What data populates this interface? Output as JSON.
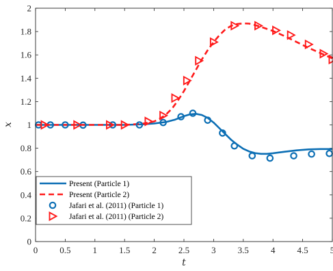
{
  "chart_data": {
    "type": "line",
    "xlabel": "t",
    "ylabel": "x",
    "xlim": [
      0,
      5
    ],
    "ylim": [
      0,
      2
    ],
    "xticks": [
      0,
      0.5,
      1,
      1.5,
      2,
      2.5,
      3,
      3.5,
      4,
      4.5,
      5
    ],
    "xtick_labels": [
      "0",
      "0.5",
      "1",
      "1.5",
      "2",
      "2.5",
      "3",
      "3.5",
      "4",
      "4.5",
      "5"
    ],
    "yticks": [
      0,
      0.2,
      0.4,
      0.6,
      0.8,
      1,
      1.2,
      1.4,
      1.6,
      1.8,
      2
    ],
    "ytick_labels": [
      "0",
      "0.2",
      "0.4",
      "0.6",
      "0.8",
      "1",
      "1.2",
      "1.4",
      "1.6",
      "1.8",
      "2"
    ],
    "grid": false,
    "legend_position": "lower-left",
    "series": [
      {
        "name": "Present (Particle 1)",
        "style": "solid-line",
        "color": "#0b6eb4",
        "x": [
          0,
          0.5,
          1.0,
          1.5,
          1.8,
          2.0,
          2.2,
          2.35,
          2.5,
          2.6,
          2.7,
          2.8,
          2.9,
          3.0,
          3.1,
          3.2,
          3.3,
          3.4,
          3.5,
          3.6,
          3.7,
          3.8,
          3.9,
          4.0,
          4.2,
          4.4,
          4.6,
          4.8,
          5.0
        ],
        "y": [
          1.0,
          1.0,
          1.0,
          1.0,
          1.005,
          1.012,
          1.025,
          1.045,
          1.075,
          1.09,
          1.095,
          1.085,
          1.06,
          1.02,
          0.97,
          0.92,
          0.87,
          0.83,
          0.795,
          0.772,
          0.758,
          0.752,
          0.752,
          0.757,
          0.77,
          0.782,
          0.79,
          0.793,
          0.793
        ]
      },
      {
        "name": "Present (Particle 2)",
        "style": "dashed-line",
        "color": "#ff1a1a",
        "x": [
          0,
          0.5,
          1.0,
          1.5,
          1.8,
          2.0,
          2.1,
          2.2,
          2.3,
          2.4,
          2.5,
          2.6,
          2.7,
          2.8,
          2.9,
          3.0,
          3.1,
          3.2,
          3.3,
          3.4,
          3.5,
          3.6,
          3.7,
          3.8,
          4.0,
          4.2,
          4.4,
          4.6,
          4.8,
          5.0
        ],
        "y": [
          1.0,
          1.0,
          1.0,
          1.0,
          1.01,
          1.03,
          1.055,
          1.09,
          1.14,
          1.21,
          1.29,
          1.38,
          1.47,
          1.56,
          1.64,
          1.71,
          1.77,
          1.82,
          1.85,
          1.865,
          1.87,
          1.868,
          1.855,
          1.84,
          1.805,
          1.76,
          1.71,
          1.66,
          1.615,
          1.57
        ]
      },
      {
        "name": "Jafari et al. (2011) (Particle 1)",
        "style": "circle-markers",
        "color": "#0b6eb4",
        "x": [
          0.05,
          0.25,
          0.5,
          0.8,
          1.3,
          1.75,
          2.15,
          2.45,
          2.65,
          2.9,
          3.15,
          3.35,
          3.65,
          3.95,
          4.35,
          4.65,
          4.95
        ],
        "y": [
          1.0,
          1.0,
          1.0,
          0.998,
          1.0,
          1.0,
          1.02,
          1.07,
          1.1,
          1.04,
          0.93,
          0.82,
          0.735,
          0.715,
          0.735,
          0.75,
          0.755
        ]
      },
      {
        "name": "Jafari et al. (2011) (Particle 2)",
        "style": "triangle-right-markers",
        "color": "#ff1a1a",
        "x": [
          0.15,
          0.7,
          1.25,
          1.5,
          1.9,
          2.15,
          2.35,
          2.55,
          2.75,
          3.0,
          3.35,
          3.75,
          4.05,
          4.3,
          4.6,
          4.85,
          5.0
        ],
        "y": [
          1.0,
          1.0,
          1.0,
          1.0,
          1.03,
          1.08,
          1.23,
          1.38,
          1.55,
          1.71,
          1.85,
          1.85,
          1.81,
          1.77,
          1.69,
          1.61,
          1.56
        ]
      }
    ]
  }
}
